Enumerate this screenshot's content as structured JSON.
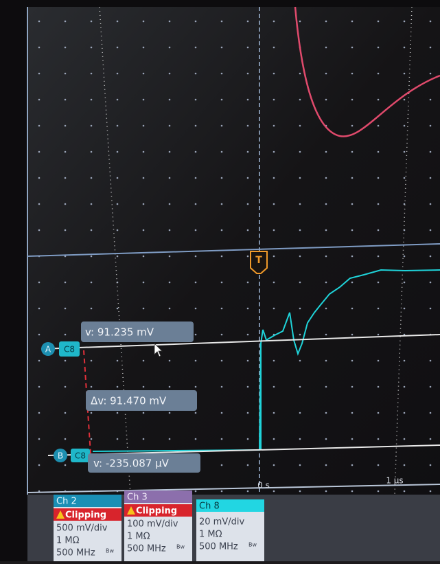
{
  "cursors": {
    "a": {
      "label": "A",
      "channel": "C8",
      "readout": "v: 91.235 mV"
    },
    "b": {
      "label": "B",
      "channel": "C8",
      "readout": "v: -235.087 µV"
    },
    "delta": "Δv: 91.470 mV"
  },
  "trigger": "T",
  "time_labels": [
    "0 s",
    "1 µs"
  ],
  "channels": [
    {
      "name": "Ch 2",
      "status": "Clipping",
      "scale": "500 mV/div",
      "impedance": "1 MΩ",
      "bandwidth": "500 MHz",
      "bw_flag": "Bw"
    },
    {
      "name": "Ch 3",
      "status": "Clipping",
      "scale": "100 mV/div",
      "impedance": "1 MΩ",
      "bandwidth": "500 MHz",
      "bw_flag": "Bw"
    },
    {
      "name": "Ch 8",
      "scale": "20 mV/div",
      "impedance": "1 MΩ",
      "bandwidth": "500 MHz",
      "bw_flag": "Bw"
    }
  ]
}
